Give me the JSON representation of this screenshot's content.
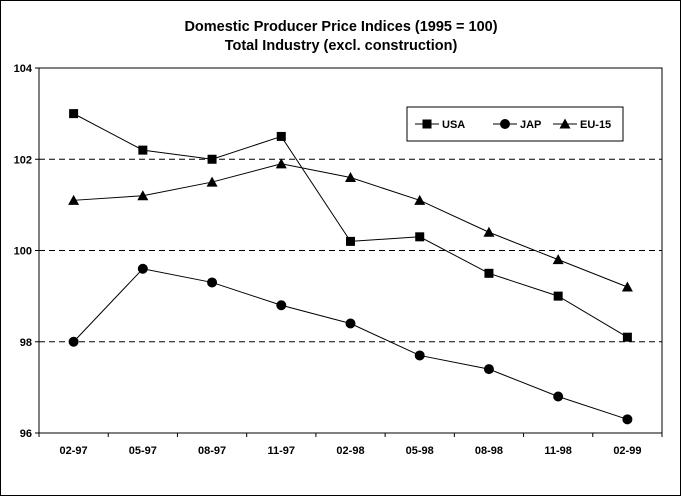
{
  "chart_data": {
    "type": "line",
    "title": "Domestic Producer Price Indices (1995 = 100)",
    "subtitle": "Total Industry (excl. construction)",
    "xlabel": "",
    "ylabel": "",
    "categories": [
      "02-97",
      "05-97",
      "08-97",
      "11-97",
      "02-98",
      "05-98",
      "08-98",
      "11-98",
      "02-99"
    ],
    "ylim": [
      96,
      104
    ],
    "yticks": [
      96,
      98,
      100,
      102,
      104
    ],
    "grid": "horizontal dashed at 98, 100, 102",
    "legend_position": "top-right",
    "series": [
      {
        "name": "USA",
        "marker": "square",
        "color": "#000000",
        "values": [
          103.0,
          102.2,
          102.0,
          102.5,
          100.2,
          100.3,
          99.5,
          99.0,
          98.1
        ]
      },
      {
        "name": "JAP",
        "marker": "circle",
        "color": "#000000",
        "values": [
          98.0,
          99.6,
          99.3,
          98.8,
          98.4,
          97.7,
          97.4,
          96.8,
          96.3
        ]
      },
      {
        "name": "EU-15",
        "marker": "triangle",
        "color": "#000000",
        "values": [
          101.1,
          101.2,
          101.5,
          101.9,
          101.6,
          101.1,
          100.4,
          99.8,
          99.2
        ]
      }
    ]
  }
}
